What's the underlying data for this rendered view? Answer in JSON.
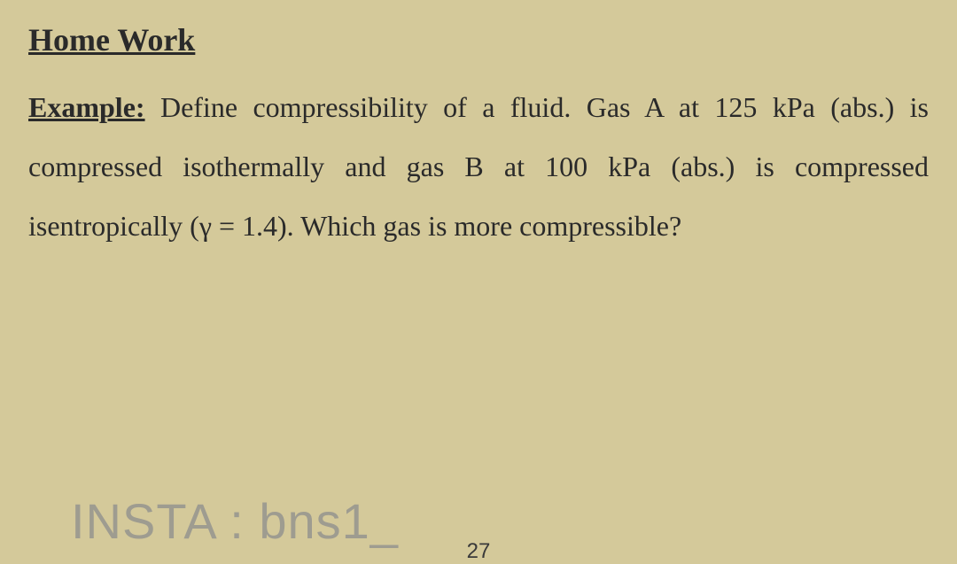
{
  "document": {
    "background_color": "#d4c99a",
    "text_color": "#2a2a2a",
    "font_family": "Times New Roman",
    "heading": "Home Work",
    "heading_fontsize": 36,
    "body_fontsize": 32,
    "example_label": "Example:",
    "body_text": " Define compressibility of a fluid. Gas A at 125 kPa (abs.) is compressed isothermally and gas B at 100 kPa (abs.) is compressed isentropically (γ = 1.4). Which gas is more compressible?",
    "watermark": "INSTA : bns1_",
    "watermark_color": "rgba(140,140,140,0.75)",
    "watermark_fontsize": 56,
    "page_number": "27"
  }
}
